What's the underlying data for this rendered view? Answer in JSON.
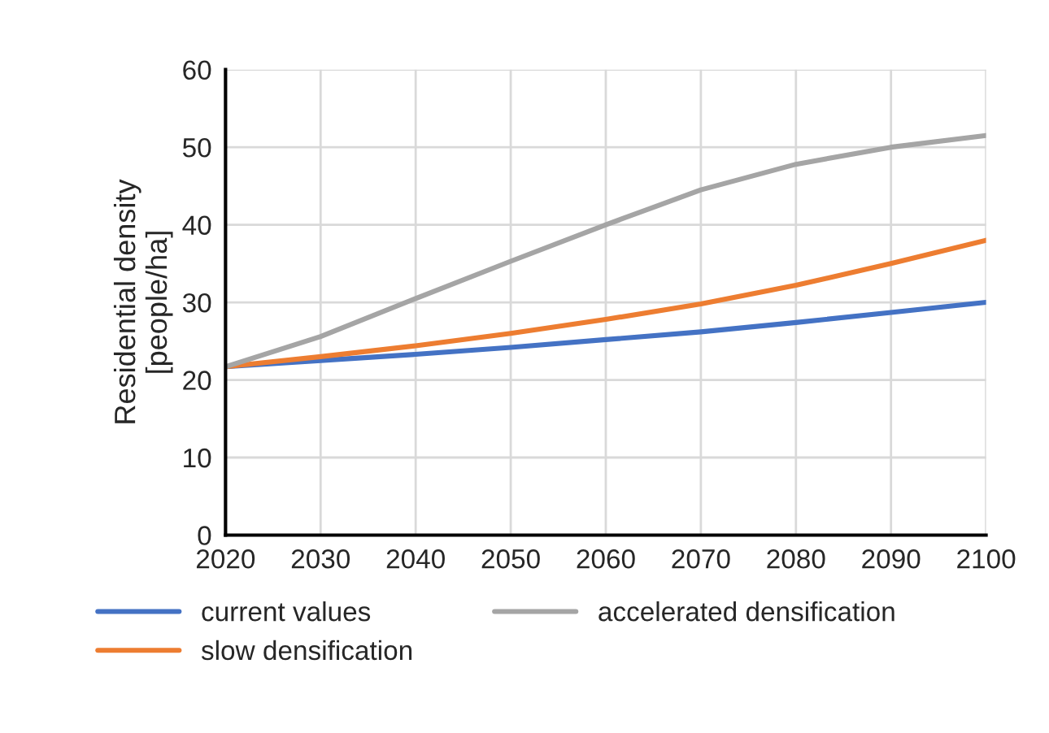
{
  "chart_data": {
    "type": "line",
    "ylabel": "Residential density\n[people/ha]",
    "x": [
      2020,
      2030,
      2040,
      2050,
      2060,
      2070,
      2080,
      2090,
      2100
    ],
    "series": [
      {
        "name": "current values",
        "color": "#4472c4",
        "values": [
          21.7,
          22.5,
          23.3,
          24.2,
          25.2,
          26.2,
          27.4,
          28.7,
          30
        ]
      },
      {
        "name": "slow densification",
        "color": "#ed7d31",
        "values": [
          21.7,
          23,
          24.4,
          26,
          27.8,
          29.8,
          32.2,
          35,
          38
        ]
      },
      {
        "name": "accelerated densification",
        "color": "#a5a5a5",
        "values": [
          21.7,
          25.6,
          30.5,
          35.3,
          40,
          44.5,
          47.8,
          50,
          51.5
        ]
      }
    ],
    "xlim": [
      2020,
      2100
    ],
    "xticks": [
      2020,
      2030,
      2040,
      2050,
      2060,
      2070,
      2080,
      2090,
      2100
    ],
    "ylim": [
      0,
      60
    ],
    "yticks": [
      0,
      10,
      20,
      30,
      40,
      50,
      60
    ],
    "grid": true,
    "legend": "bottom",
    "marker": "none",
    "line_style": "solid"
  }
}
